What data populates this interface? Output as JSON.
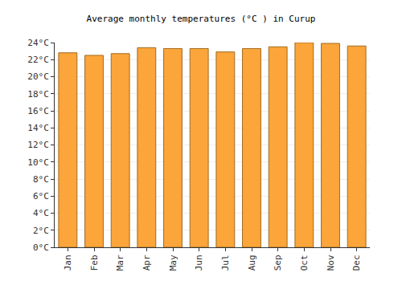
{
  "chart_data": {
    "type": "bar",
    "title": "Average monthly temperatures (°C ) in Curup",
    "categories": [
      "Jan",
      "Feb",
      "Mar",
      "Apr",
      "May",
      "Jun",
      "Jul",
      "Aug",
      "Sep",
      "Oct",
      "Nov",
      "Dec"
    ],
    "values": [
      22.8,
      22.5,
      22.7,
      23.4,
      23.3,
      23.3,
      22.9,
      23.3,
      23.5,
      24.0,
      23.9,
      23.6
    ],
    "color": "#fba53a",
    "ylim": [
      0,
      24
    ],
    "yticks": [
      {
        "value": 0,
        "label": "0°C"
      },
      {
        "value": 2,
        "label": "2°C"
      },
      {
        "value": 4,
        "label": "4°C"
      },
      {
        "value": 6,
        "label": "6°C"
      },
      {
        "value": 8,
        "label": "8°C"
      },
      {
        "value": 10,
        "label": "10°C"
      },
      {
        "value": 12,
        "label": "12°C"
      },
      {
        "value": 14,
        "label": "14°C"
      },
      {
        "value": 16,
        "label": "16°C"
      },
      {
        "value": 18,
        "label": "18°C"
      },
      {
        "value": 20,
        "label": "20°C"
      },
      {
        "value": 22,
        "label": "22°C"
      },
      {
        "value": 24,
        "label": "24°C"
      }
    ],
    "grid": true
  }
}
